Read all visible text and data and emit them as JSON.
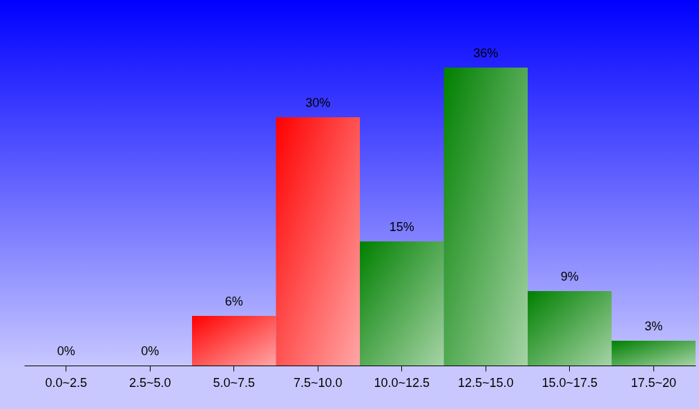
{
  "chart_data": {
    "type": "bar",
    "categories": [
      "0.0~2.5",
      "2.5~5.0",
      "5.0~7.5",
      "7.5~10.0",
      "10.0~12.5",
      "12.5~15.0",
      "15.0~17.5",
      "17.5~20"
    ],
    "values": [
      0,
      0,
      6,
      30,
      15,
      36,
      9,
      3
    ],
    "colors": [
      "#ff0000",
      "#ff0000",
      "#ff0000",
      "#ff0000",
      "#008000",
      "#008000",
      "#008000",
      "#008000"
    ],
    "value_labels": [
      "0%",
      "0%",
      "6%",
      "30%",
      "15%",
      "36%",
      "9%",
      "3%"
    ],
    "grid": false
  }
}
